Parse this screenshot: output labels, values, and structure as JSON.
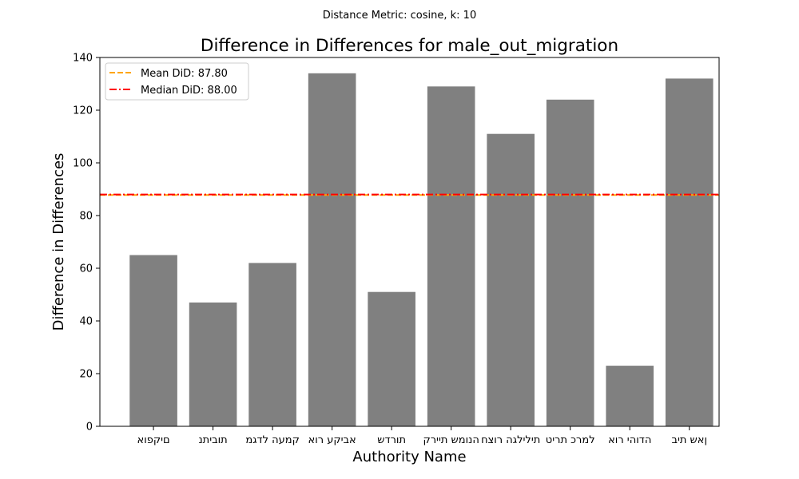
{
  "figure": {
    "suptitle": "Distance Metric: cosine, k: 10"
  },
  "chart_data": {
    "type": "bar",
    "title": "Difference in Differences for male_out_migration",
    "xlabel": "Authority Name",
    "ylabel": "Difference in Differences",
    "categories": [
      "אופקים",
      "נתיבות",
      "מגדל העמק",
      "אור עקיבא",
      "שדרות",
      "קריית שמונה",
      "חצור הגלילית",
      "טירת כרמל",
      "אור יהודה",
      "בית שאן"
    ],
    "tick_labels": [
      "‭אופקים‬",
      "‭נתיבות‬",
      "‭מגדל העמק‬",
      "‭אור עקיבא‬",
      "‭שדרות‬",
      "‭קריית שמונה‬",
      "‭חצור הגלילית‬",
      "‭טירת כרמל‬",
      "‭אור יהודה‬",
      "‭בית שאן‬"
    ],
    "values": [
      65,
      47,
      62,
      134,
      51,
      129,
      111,
      124,
      23,
      132
    ],
    "bar_color": "#808080",
    "ylim": [
      0,
      140
    ],
    "yticks": [
      0,
      20,
      40,
      60,
      80,
      100,
      120,
      140
    ],
    "reference_lines": [
      {
        "name": "Mean DiD: 87.80",
        "value": 87.8,
        "color": "#ffa500",
        "style": "dashed"
      },
      {
        "name": "Median DiD: 88.00",
        "value": 88.0,
        "color": "#ff0000",
        "style": "dashdot"
      }
    ],
    "legend_position": "upper-left",
    "grid": false
  }
}
